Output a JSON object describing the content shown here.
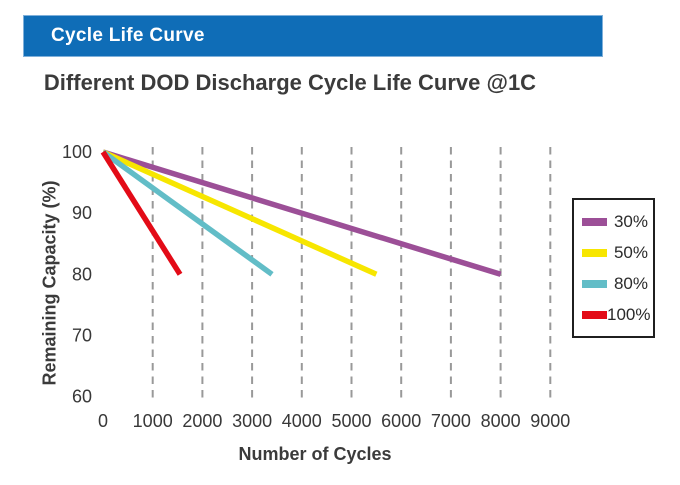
{
  "banner": {
    "label": "Cycle Life Curve"
  },
  "title": "Different DOD Discharge Cycle Life Curve @1C",
  "colors": {
    "banner_bg": "#0f6db7",
    "banner_text": "#ffffff",
    "title_text": "#3b3b3b",
    "grid": "#999999",
    "tick_text": "#383838",
    "legend_border": "#1f1f1f"
  },
  "chart_data": {
    "type": "line",
    "title": "Different DOD Discharge Cycle Life Curve @1C",
    "xlabel": "Number of Cycles",
    "ylabel": "Remaining Capacity (%)",
    "xlim": [
      0,
      9000
    ],
    "ylim": [
      60,
      100
    ],
    "xticks": [
      0,
      1000,
      2000,
      3000,
      4000,
      5000,
      6000,
      7000,
      8000,
      9000
    ],
    "yticks": [
      100,
      90,
      80,
      70,
      60
    ],
    "grid": "vertical-dashed",
    "legend_position": "right",
    "legend_title": null,
    "series": [
      {
        "name": "30%",
        "color": "#9c4f97",
        "points": [
          [
            0,
            100
          ],
          [
            8000,
            80
          ]
        ]
      },
      {
        "name": "50%",
        "color": "#f7e600",
        "points": [
          [
            0,
            100
          ],
          [
            5500,
            80
          ]
        ]
      },
      {
        "name": "80%",
        "color": "#62bdc7",
        "points": [
          [
            0,
            100
          ],
          [
            3400,
            80
          ]
        ]
      },
      {
        "name": "100%",
        "color": "#e30b17",
        "points": [
          [
            0,
            100
          ],
          [
            1550,
            80
          ]
        ]
      }
    ]
  }
}
